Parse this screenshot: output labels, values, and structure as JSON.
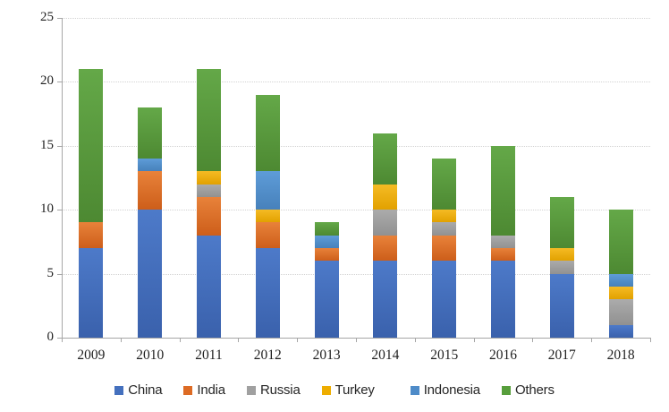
{
  "chart_data": {
    "type": "bar",
    "stacked": true,
    "title": "",
    "xlabel": "",
    "ylabel": "",
    "categories": [
      "2009",
      "2010",
      "2011",
      "2012",
      "2013",
      "2014",
      "2015",
      "2016",
      "2017",
      "2018"
    ],
    "series": [
      {
        "name": "China",
        "color": "#4470be",
        "color_top": "#4d7ac9",
        "color_bottom": "#3a61ac",
        "values": [
          7,
          10,
          8,
          7,
          6,
          6,
          6,
          6,
          5,
          1
        ]
      },
      {
        "name": "India",
        "color": "#dd6b24",
        "color_top": "#e8823a",
        "color_bottom": "#cd5e1a",
        "values": [
          2,
          3,
          3,
          2,
          1,
          2,
          2,
          1,
          0,
          0
        ]
      },
      {
        "name": "Russia",
        "color": "#a0a0a0",
        "color_top": "#ababab",
        "color_bottom": "#919191",
        "values": [
          0,
          0,
          1,
          0,
          0,
          2,
          1,
          1,
          1,
          2
        ]
      },
      {
        "name": "Turkey",
        "color": "#eead00",
        "color_top": "#f5bb24",
        "color_bottom": "#e2a100",
        "values": [
          0,
          0,
          1,
          1,
          0,
          2,
          1,
          0,
          1,
          1
        ]
      },
      {
        "name": "Indonesia",
        "color": "#4e8bc8",
        "color_top": "#5e9cd8",
        "color_bottom": "#4781bb",
        "values": [
          0,
          1,
          0,
          3,
          1,
          0,
          0,
          0,
          0,
          1
        ]
      },
      {
        "name": "Others",
        "color": "#579e3c",
        "color_top": "#64a848",
        "color_bottom": "#4d8932",
        "values": [
          12,
          4,
          8,
          6,
          1,
          4,
          4,
          7,
          4,
          5
        ]
      }
    ],
    "totals": [
      21,
      18,
      21,
      19,
      9,
      16,
      14,
      15,
      11,
      10
    ],
    "ylim": [
      0,
      25
    ],
    "yticks": [
      0,
      5,
      10,
      15,
      20,
      25
    ],
    "grid": true,
    "gridline_style": "dotted",
    "legend_position": "bottom",
    "axis_color": "#a6a6a6",
    "background": "#ffffff"
  }
}
